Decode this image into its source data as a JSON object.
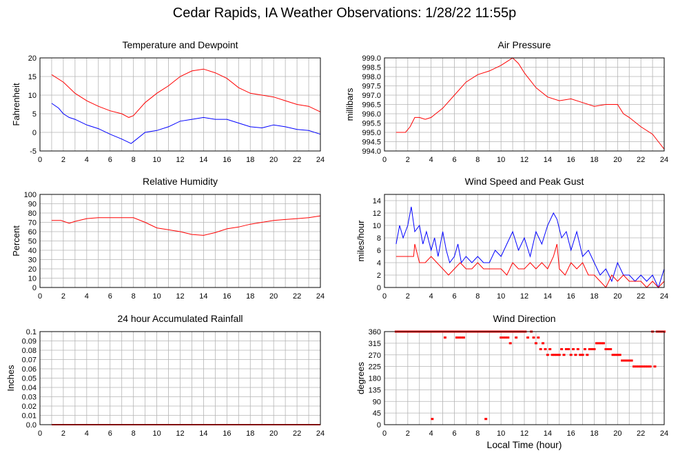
{
  "page": {
    "title": "Cedar Rapids, IA Weather Observations: 1/28/22 11:55p",
    "x_axis_label": "Local Time (hour)"
  },
  "colors": {
    "red": "#ff0000",
    "blue": "#0000ff",
    "grid": "#b4b4b4",
    "frame": "#000000"
  },
  "chart_data": [
    {
      "id": "temp",
      "type": "line",
      "title": "Temperature and Dewpoint",
      "ylabel": "Fahrenheit",
      "xlabel": "",
      "xlim": [
        0,
        24
      ],
      "ylim": [
        -5,
        20
      ],
      "xticks": [
        2,
        4,
        6,
        8,
        10,
        12,
        14,
        16,
        18,
        20,
        22,
        24
      ],
      "yticks": [
        -5,
        0,
        5,
        10,
        15,
        20
      ],
      "ytick_labels": [
        "-5",
        "0",
        "5",
        "10",
        "15",
        "20"
      ],
      "series": [
        {
          "color": "#ff0000",
          "x": [
            1,
            2,
            3,
            4,
            5,
            6,
            7,
            7.6,
            8,
            9,
            10,
            11,
            12,
            13,
            14,
            15,
            16,
            17,
            18,
            19,
            20,
            21,
            22,
            23,
            24
          ],
          "y": [
            15.5,
            13.5,
            10.5,
            8.5,
            7,
            5.8,
            5,
            4,
            4.5,
            8,
            10.5,
            12.5,
            15,
            16.5,
            17,
            16,
            14.5,
            12,
            10.5,
            10,
            9.5,
            8.5,
            7.5,
            7,
            5.5
          ]
        },
        {
          "color": "#0000ff",
          "x": [
            1,
            1.6,
            2,
            2.5,
            3,
            4,
            5,
            6,
            7,
            7.8,
            8.2,
            9,
            10,
            11,
            12,
            13,
            14,
            15,
            16,
            17,
            18,
            19,
            20,
            21,
            22,
            23,
            24
          ],
          "y": [
            7.8,
            6.5,
            5,
            4,
            3.5,
            2,
            1,
            -0.5,
            -1.8,
            -3,
            -2,
            0,
            0.5,
            1.5,
            3,
            3.5,
            4,
            3.5,
            3.5,
            2.5,
            1.5,
            1.2,
            2,
            1.5,
            0.8,
            0.5,
            -0.5
          ]
        }
      ]
    },
    {
      "id": "pressure",
      "type": "line",
      "title": "Air Pressure",
      "ylabel": "millibars",
      "xlabel": "",
      "xlim": [
        0,
        24
      ],
      "ylim": [
        994.0,
        999.0
      ],
      "xticks": [
        2,
        4,
        6,
        8,
        10,
        12,
        14,
        16,
        18,
        20,
        22,
        24
      ],
      "yticks": [
        994.0,
        994.5,
        995.0,
        995.5,
        996.0,
        996.5,
        997.0,
        997.5,
        998.0,
        998.5,
        999.0
      ],
      "ytick_labels": [
        "994.0",
        "994.5",
        "995.0",
        "995.5",
        "996.0",
        "996.5",
        "997.0",
        "997.5",
        "998.0",
        "998.5",
        "999.0"
      ],
      "series": [
        {
          "color": "#ff0000",
          "x": [
            1,
            1.8,
            2.2,
            2.6,
            3,
            3.5,
            4,
            5,
            6,
            7,
            8,
            9,
            10,
            10.5,
            11,
            11.5,
            12,
            13,
            14,
            15,
            16,
            17,
            18,
            19,
            20,
            20.5,
            21,
            22,
            23,
            23.5,
            24
          ],
          "y": [
            995.0,
            995.0,
            995.3,
            995.8,
            995.8,
            995.7,
            995.8,
            996.3,
            997.0,
            997.7,
            998.1,
            998.3,
            998.6,
            998.8,
            999.0,
            998.7,
            998.2,
            997.4,
            996.9,
            996.7,
            996.8,
            996.6,
            996.4,
            996.5,
            996.5,
            996.0,
            995.8,
            995.3,
            994.9,
            994.5,
            994.1
          ]
        }
      ]
    },
    {
      "id": "humidity",
      "type": "line",
      "title": "Relative Humidity",
      "ylabel": "Percent",
      "xlabel": "",
      "xlim": [
        0,
        24
      ],
      "ylim": [
        0,
        100
      ],
      "xticks": [
        2,
        4,
        6,
        8,
        10,
        12,
        14,
        16,
        18,
        20,
        22,
        24
      ],
      "yticks": [
        0,
        10,
        20,
        30,
        40,
        50,
        60,
        70,
        80,
        90,
        100
      ],
      "ytick_labels": [
        "0",
        "10",
        "20",
        "30",
        "40",
        "50",
        "60",
        "70",
        "80",
        "90",
        "100"
      ],
      "series": [
        {
          "color": "#ff0000",
          "x": [
            1,
            1.8,
            2.5,
            3,
            4,
            5,
            6,
            7,
            8,
            9,
            10,
            11,
            12,
            13,
            14,
            15,
            16,
            17,
            18,
            19,
            20,
            21,
            22,
            23,
            24
          ],
          "y": [
            72,
            72,
            69,
            71,
            74,
            75,
            75,
            75,
            75,
            70,
            64,
            62,
            60,
            57,
            56,
            59,
            63,
            65,
            68,
            70,
            72,
            73,
            74,
            75,
            77
          ]
        }
      ]
    },
    {
      "id": "wind",
      "type": "line",
      "title": "Wind Speed and Peak Gust",
      "ylabel": "miles/hour",
      "xlabel": "",
      "xlim": [
        0,
        24
      ],
      "ylim": [
        0,
        15
      ],
      "xticks": [
        2,
        4,
        6,
        8,
        10,
        12,
        14,
        16,
        18,
        20,
        22,
        24
      ],
      "yticks": [
        0,
        2,
        4,
        6,
        8,
        10,
        12,
        14
      ],
      "ytick_labels": [
        "0",
        "2",
        "4",
        "6",
        "8",
        "10",
        "12",
        "14"
      ],
      "series": [
        {
          "color": "#0000ff",
          "x": [
            1,
            1.3,
            1.6,
            2,
            2.3,
            2.6,
            3,
            3.3,
            3.6,
            4,
            4.3,
            4.6,
            5,
            5.3,
            5.6,
            6,
            6.3,
            6.6,
            7,
            7.5,
            8,
            8.5,
            9,
            9.5,
            10,
            10.5,
            11,
            11.5,
            12,
            12.5,
            13,
            13.5,
            14,
            14.5,
            14.8,
            15.2,
            15.6,
            16,
            16.5,
            17,
            17.5,
            18,
            18.5,
            19,
            19.5,
            20,
            20.5,
            21,
            21.5,
            22,
            22.5,
            23,
            23.5,
            24
          ],
          "y": [
            7,
            10,
            8,
            10,
            13,
            9,
            10,
            7,
            9,
            6,
            8,
            5,
            9,
            6,
            4,
            5,
            7,
            4,
            5,
            4,
            5,
            4,
            4,
            6,
            5,
            7,
            9,
            6,
            8,
            5,
            9,
            7,
            10,
            12,
            11,
            8,
            9,
            6,
            9,
            5,
            6,
            4,
            2,
            3,
            1,
            4,
            2,
            2,
            1,
            2,
            1,
            2,
            0,
            3
          ]
        },
        {
          "color": "#ff0000",
          "x": [
            1,
            1.5,
            2,
            2.5,
            2.6,
            3,
            3.5,
            4,
            4.5,
            5,
            5.5,
            6,
            6.5,
            7,
            7.5,
            8,
            8.5,
            9,
            9.5,
            10,
            10.5,
            11,
            11.5,
            12,
            12.5,
            13,
            13.5,
            14,
            14.5,
            14.8,
            15,
            15.5,
            16,
            16.5,
            17,
            17.5,
            18,
            18.5,
            19,
            19.5,
            20,
            20.5,
            21,
            21.5,
            22,
            22.5,
            23,
            23.5,
            24
          ],
          "y": [
            5,
            5,
            5,
            5,
            7,
            4,
            4,
            5,
            4,
            3,
            2,
            3,
            4,
            3,
            3,
            4,
            3,
            3,
            3,
            3,
            2,
            4,
            3,
            3,
            4,
            3,
            4,
            3,
            5,
            7,
            3,
            2,
            4,
            3,
            4,
            2,
            2,
            1,
            0,
            2,
            1,
            2,
            1,
            1,
            1,
            0,
            1,
            0,
            1
          ]
        }
      ]
    },
    {
      "id": "rain",
      "type": "line",
      "title": "24 hour Accumulated Rainfall",
      "ylabel": "Inches",
      "xlabel": "",
      "xlim": [
        0,
        24
      ],
      "ylim": [
        0,
        0.1
      ],
      "xticks": [
        2,
        4,
        6,
        8,
        10,
        12,
        14,
        16,
        18,
        20,
        22,
        24
      ],
      "yticks": [
        0,
        0.01,
        0.02,
        0.03,
        0.04,
        0.05,
        0.06,
        0.07,
        0.08,
        0.09,
        0.1
      ],
      "ytick_labels": [
        "0.0",
        "0.01",
        "0.02",
        "0.03",
        "0.04",
        "0.05",
        "0.06",
        "0.07",
        "0.08",
        "0.09",
        "0.1"
      ],
      "series": [
        {
          "color": "#ff0000",
          "x": [
            1,
            24
          ],
          "y": [
            0,
            0
          ]
        }
      ]
    },
    {
      "id": "direction",
      "type": "scatter",
      "title": "Wind Direction",
      "ylabel": "degrees",
      "xlabel": "Local Time (hour)",
      "xlim": [
        0,
        24
      ],
      "ylim": [
        0,
        360
      ],
      "xticks": [
        2,
        4,
        6,
        8,
        10,
        12,
        14,
        16,
        18,
        20,
        22,
        24
      ],
      "yticks": [
        0,
        45,
        90,
        135,
        180,
        225,
        270,
        315,
        360
      ],
      "ytick_labels": [
        "0",
        "45",
        "90",
        "135",
        "180",
        "225",
        "270",
        "315",
        "360"
      ],
      "series": [
        {
          "color": "#ff0000",
          "x": [
            1,
            1.3,
            1.6,
            2,
            2.3,
            2.6,
            3,
            3.3,
            3.6,
            4,
            4.3,
            4.6,
            5,
            5.2,
            5.5,
            5.8,
            6,
            6.2,
            6.4,
            6.6,
            6.8,
            7,
            7.3,
            7.6,
            8,
            8.3,
            8.6,
            9,
            9.3,
            9.6,
            10,
            10.2,
            10.4,
            10.6,
            10.8,
            11,
            11.3,
            11.6,
            12,
            12.3,
            12.6,
            12.8,
            13,
            13.2,
            13.4,
            13.6,
            13.8,
            14,
            14.2,
            14.4,
            14.6,
            14.8,
            15,
            15.2,
            15.4,
            15.6,
            15.8,
            16,
            16.2,
            16.4,
            16.6,
            16.8,
            17,
            17.2,
            17.4,
            17.6,
            17.8,
            18,
            18.2,
            18.4,
            18.6,
            18.8,
            19,
            19.2,
            19.4,
            19.6,
            19.8,
            20,
            20.2,
            20.4,
            20.6,
            20.8,
            21,
            21.2,
            21.4,
            21.6,
            21.8,
            22,
            22.2,
            22.4,
            22.6,
            22.8,
            23,
            23.2,
            23.4,
            23.6,
            23.8,
            24,
            4.1,
            8.7
          ],
          "y": [
            360,
            360,
            360,
            360,
            360,
            360,
            360,
            360,
            360,
            360,
            360,
            360,
            360,
            337,
            360,
            360,
            360,
            337,
            337,
            337,
            337,
            360,
            360,
            360,
            360,
            360,
            360,
            360,
            360,
            360,
            337,
            337,
            337,
            337,
            315,
            360,
            337,
            360,
            360,
            337,
            360,
            337,
            315,
            337,
            292,
            315,
            292,
            270,
            292,
            270,
            270,
            270,
            270,
            292,
            270,
            292,
            292,
            270,
            292,
            270,
            292,
            270,
            270,
            292,
            270,
            292,
            292,
            292,
            315,
            315,
            315,
            315,
            292,
            292,
            292,
            270,
            270,
            270,
            270,
            248,
            248,
            248,
            248,
            248,
            225,
            225,
            225,
            225,
            225,
            225,
            225,
            225,
            360,
            225,
            360,
            360,
            360,
            360,
            22,
            22
          ]
        }
      ]
    }
  ]
}
